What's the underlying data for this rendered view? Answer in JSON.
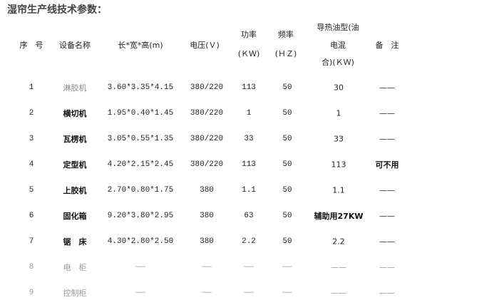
{
  "title": "湿帘生产线技术参数：",
  "headers": {
    "seq": "序　号",
    "name": "设备名称",
    "dims": "长*宽*高(m)",
    "voltage": "电压(Ｖ)",
    "power": [
      "功率",
      "(ＫＷ)"
    ],
    "freq": [
      "频率",
      "(ＨＺ)"
    ],
    "oil": [
      "导热油型(油",
      "电混",
      "合)(ＫＷ)"
    ],
    "remarks": "备　注"
  },
  "rows": [
    {
      "seq": "1",
      "name": "淋胶机",
      "dims": "3.60*3.35*4.15",
      "voltage": "380/220",
      "power": "113",
      "freq": "50",
      "oil": "30",
      "remarks": "——"
    },
    {
      "seq": "2",
      "name": "横切机",
      "dims": "1.95*0.40*1.45",
      "voltage": "380/220",
      "power": "1",
      "freq": "50",
      "oil": "1",
      "remarks": "——"
    },
    {
      "seq": "3",
      "name": "瓦楞机",
      "dims": "3.05*0.55*1.35",
      "voltage": "380/220",
      "power": "33",
      "freq": "50",
      "oil": "33",
      "remarks": "——"
    },
    {
      "seq": "4",
      "name": "定型机",
      "dims": "4.20*2.15*2.45",
      "voltage": "380/220",
      "power": "113",
      "freq": "50",
      "oil": "113",
      "remarks": "可不用"
    },
    {
      "seq": "5",
      "name": "上胶机",
      "dims": "2.70*0.80*1.75",
      "voltage": "380",
      "power": "1.1",
      "freq": "50",
      "oil": "1.1",
      "remarks": "——"
    },
    {
      "seq": "6",
      "name": "固化箱",
      "dims": "9.20*3.80*2.95",
      "voltage": "380",
      "power": "63",
      "freq": "50",
      "oil": "辅助用27KW",
      "remarks": "——"
    },
    {
      "seq": "7",
      "name": "锯　床",
      "dims": "4.30*2.80*2.50",
      "voltage": "380",
      "power": "2.2",
      "freq": "50",
      "oil": "2.2",
      "remarks": "——"
    },
    {
      "seq": "8",
      "name": "电　柜",
      "dims": "——",
      "voltage": "——",
      "power": "——",
      "freq": "——",
      "oil": "——",
      "remarks": "——"
    },
    {
      "seq": "9",
      "name": "控制柜",
      "dims": "——",
      "voltage": "——",
      "power": "——",
      "freq": "——",
      "oil": "——",
      "remarks": "——"
    }
  ]
}
